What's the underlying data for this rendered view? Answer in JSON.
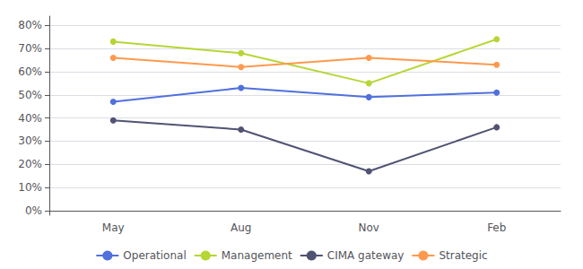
{
  "chart_data": {
    "type": "line",
    "categories": [
      "May",
      "Aug",
      "Nov",
      "Feb"
    ],
    "series": [
      {
        "name": "Operational",
        "values": [
          0.47,
          0.53,
          0.49,
          0.51
        ],
        "marker": "circle"
      },
      {
        "name": "Management",
        "values": [
          0.73,
          0.68,
          0.55,
          0.74
        ],
        "marker": "circle"
      },
      {
        "name": "CIMA gateway",
        "values": [
          0.39,
          0.35,
          0.17,
          0.36
        ],
        "marker": "circle"
      },
      {
        "name": "Strategic",
        "values": [
          0.66,
          0.62,
          0.66,
          0.63
        ],
        "marker": "circle"
      }
    ],
    "ylim": [
      -0.02,
      0.84
    ],
    "yticks": [
      {
        "value": 0.0,
        "label": "0%"
      },
      {
        "value": 0.1,
        "label": "10%"
      },
      {
        "value": 0.2,
        "label": "20%"
      },
      {
        "value": 0.3,
        "label": "30%"
      },
      {
        "value": 0.4,
        "label": "40%"
      },
      {
        "value": 0.5,
        "label": "50%"
      },
      {
        "value": 0.6,
        "label": "60%"
      },
      {
        "value": 0.7,
        "label": "70%"
      },
      {
        "value": 0.8,
        "label": "80%"
      }
    ],
    "grid": true,
    "legend": "bottom"
  }
}
